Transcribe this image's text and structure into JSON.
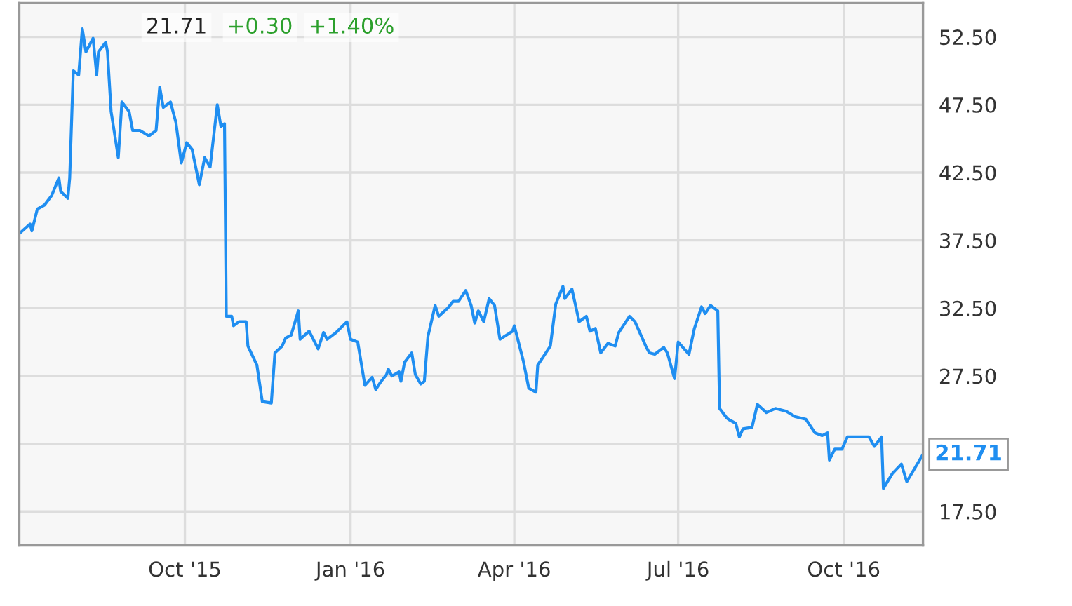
{
  "chart_data": {
    "type": "line",
    "x": [
      "2015-07-01",
      "2015-07-07",
      "2015-07-08",
      "2015-07-11",
      "2015-07-15",
      "2015-07-19",
      "2015-07-23",
      "2015-07-24",
      "2015-07-28",
      "2015-07-29",
      "2015-07-31",
      "2015-08-03",
      "2015-08-05",
      "2015-08-07",
      "2015-08-11",
      "2015-08-13",
      "2015-08-14",
      "2015-08-18",
      "2015-08-19",
      "2015-08-21",
      "2015-08-25",
      "2015-08-27",
      "2015-08-31",
      "2015-09-02",
      "2015-09-06",
      "2015-09-11",
      "2015-09-15",
      "2015-09-17",
      "2015-09-19",
      "2015-09-23",
      "2015-09-26",
      "2015-09-29",
      "2015-10-02",
      "2015-10-05",
      "2015-10-09",
      "2015-10-12",
      "2015-10-15",
      "2015-10-19",
      "2015-10-21",
      "2015-10-23",
      "2015-10-24",
      "2015-10-27",
      "2015-10-28",
      "2015-10-31",
      "2015-11-04",
      "2015-11-05",
      "2015-11-10",
      "2015-11-13",
      "2015-11-18",
      "2015-11-20",
      "2015-11-24",
      "2015-11-26",
      "2015-11-29",
      "2015-12-03",
      "2015-12-04",
      "2015-12-09",
      "2015-12-14",
      "2015-12-17",
      "2015-12-19",
      "2015-12-24",
      "2015-12-30",
      "2016-01-01",
      "2016-01-05",
      "2016-01-09",
      "2016-01-13",
      "2016-01-15",
      "2016-01-18",
      "2016-01-21",
      "2016-01-22",
      "2016-01-24",
      "2016-01-28",
      "2016-01-29",
      "2016-01-31",
      "2016-02-04",
      "2016-02-06",
      "2016-02-09",
      "2016-02-11",
      "2016-02-13",
      "2016-02-17",
      "2016-02-19",
      "2016-02-24",
      "2016-02-27",
      "2016-03-01",
      "2016-03-05",
      "2016-03-08",
      "2016-03-10",
      "2016-03-12",
      "2016-03-15",
      "2016-03-18",
      "2016-03-21",
      "2016-03-24",
      "2016-03-31",
      "2016-04-01",
      "2016-04-06",
      "2016-04-09",
      "2016-04-13",
      "2016-04-14",
      "2016-04-21",
      "2016-04-24",
      "2016-04-28",
      "2016-04-29",
      "2016-05-03",
      "2016-05-07",
      "2016-05-11",
      "2016-05-13",
      "2016-05-16",
      "2016-05-19",
      "2016-05-23",
      "2016-05-27",
      "2016-05-29",
      "2016-06-04",
      "2016-06-07",
      "2016-06-13",
      "2016-06-15",
      "2016-06-18",
      "2016-06-23",
      "2016-06-25",
      "2016-06-29",
      "2016-07-01",
      "2016-07-07",
      "2016-07-10",
      "2016-07-14",
      "2016-07-16",
      "2016-07-19",
      "2016-07-23",
      "2016-07-24",
      "2016-07-28",
      "2016-07-29",
      "2016-08-02",
      "2016-08-04",
      "2016-08-06",
      "2016-08-11",
      "2016-08-14",
      "2016-08-19",
      "2016-08-24",
      "2016-08-30",
      "2016-09-04",
      "2016-09-10",
      "2016-09-15",
      "2016-09-19",
      "2016-09-22",
      "2016-09-23",
      "2016-09-26",
      "2016-09-30",
      "2016-10-03",
      "2016-10-09",
      "2016-10-15",
      "2016-10-18",
      "2016-10-22",
      "2016-10-23",
      "2016-10-28",
      "2016-11-02",
      "2016-11-05",
      "2016-11-14"
    ],
    "series": [
      {
        "color": "#1f8ef1",
        "values": [
          38.0,
          38.7,
          38.2,
          39.8,
          40.1,
          40.8,
          42.1,
          41.1,
          40.6,
          42.1,
          50.0,
          49.7,
          53.1,
          51.4,
          52.4,
          49.7,
          51.4,
          52.1,
          51.4,
          47.0,
          43.6,
          47.7,
          47.0,
          45.6,
          45.6,
          45.2,
          45.6,
          48.8,
          47.3,
          47.7,
          46.2,
          43.2,
          44.7,
          44.2,
          41.6,
          43.6,
          42.9,
          47.5,
          45.9,
          46.1,
          31.9,
          31.9,
          31.2,
          31.5,
          31.5,
          29.7,
          28.3,
          25.6,
          25.5,
          29.2,
          29.7,
          30.3,
          30.5,
          32.3,
          30.2,
          30.8,
          29.5,
          30.7,
          30.2,
          30.7,
          31.5,
          30.2,
          30.0,
          26.8,
          27.4,
          26.5,
          27.1,
          27.6,
          28.0,
          27.5,
          27.8,
          27.1,
          28.5,
          29.2,
          27.6,
          26.9,
          27.1,
          30.4,
          32.7,
          31.9,
          32.5,
          33.0,
          33.0,
          33.8,
          32.7,
          31.4,
          32.3,
          31.5,
          33.2,
          32.7,
          30.2,
          30.8,
          31.2,
          28.6,
          26.6,
          26.3,
          28.3,
          29.7,
          32.8,
          34.1,
          33.2,
          33.9,
          31.5,
          31.9,
          30.8,
          31.0,
          29.2,
          29.9,
          29.7,
          30.7,
          31.9,
          31.5,
          29.7,
          29.2,
          29.1,
          29.6,
          29.2,
          27.3,
          30.0,
          29.1,
          31.0,
          32.6,
          32.1,
          32.7,
          32.3,
          25.1,
          24.4,
          24.3,
          24.0,
          23.0,
          23.6,
          23.7,
          25.4,
          24.8,
          25.1,
          24.9,
          24.5,
          24.3,
          23.3,
          23.1,
          23.3,
          21.3,
          22.1,
          22.1,
          23.0,
          23.0,
          23.0,
          22.3,
          23.0,
          19.2,
          20.3,
          21.0,
          19.7,
          21.71
        ]
      }
    ],
    "xlim": [
      "2015-07-01",
      "2016-11-14"
    ],
    "xticks": [
      {
        "value": "2015-10-01",
        "label": "Oct '15"
      },
      {
        "value": "2016-01-01",
        "label": "Jan '16"
      },
      {
        "value": "2016-04-01",
        "label": "Apr '16"
      },
      {
        "value": "2016-07-01",
        "label": "Jul '16"
      },
      {
        "value": "2016-10-01",
        "label": "Oct '16"
      }
    ],
    "ylim": [
      15,
      55
    ],
    "yticks": [
      {
        "value": 17.5,
        "label": "17.50"
      },
      {
        "value": 22.5,
        "label": null
      },
      {
        "value": 27.5,
        "label": "27.50"
      },
      {
        "value": 32.5,
        "label": "32.50"
      },
      {
        "value": 37.5,
        "label": "37.50"
      },
      {
        "value": 42.5,
        "label": "42.50"
      },
      {
        "value": 47.5,
        "label": "47.50"
      },
      {
        "value": 52.5,
        "label": "52.50"
      }
    ],
    "grid": true,
    "annotations": [
      "21.71",
      "+0.30",
      "+1.40%",
      {
        "text": "21.71",
        "x": "2016-11-14",
        "y": 21.71
      }
    ]
  }
}
